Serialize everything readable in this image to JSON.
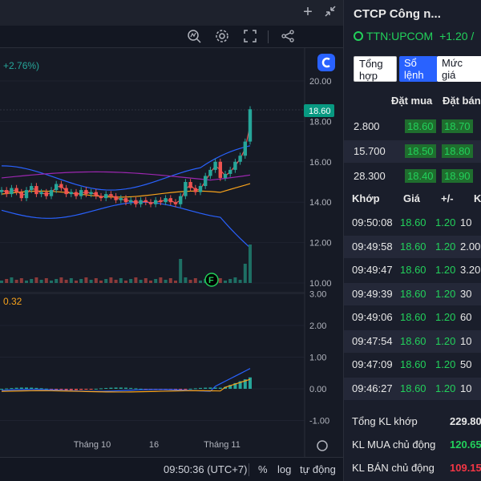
{
  "toolbar": {
    "plus_icon": "plus-icon",
    "collapse_icon": "collapse-icon",
    "indicator_icon": "indicator-icon",
    "settings_icon": "gear-icon",
    "fullscreen_icon": "fullscreen-icon",
    "share_icon": "share-icon",
    "logo_icon": "logo-icon"
  },
  "chart": {
    "change_label": "+2.76%)",
    "price_label": "18.60",
    "macd_value": "0.32",
    "price_axis": [
      "20.00",
      "18.00",
      "16.00",
      "14.00",
      "12.00",
      "10.00"
    ],
    "macd_axis": [
      "3.00",
      "2.00",
      "1.00",
      "0.00",
      "-1.00"
    ],
    "x_axis": [
      "Tháng 10",
      "16",
      "Tháng 11"
    ],
    "colors": {
      "up": "#26a69a",
      "down": "#ef5350",
      "price_tag": "#089981"
    }
  },
  "bottom_bar": {
    "time": "09:50:36 (UTC+7)",
    "percent": "%",
    "log": "log",
    "auto": "tự động"
  },
  "side_panel": {
    "title": "CTCP Công n...",
    "ticker": "TTN:UPCOM",
    "change": "+1.20 / ",
    "tabs": [
      {
        "line1": "Tổng",
        "line2": "hợp"
      },
      {
        "line1": "Sổ",
        "line2": "lệnh"
      },
      {
        "line1": "Mức",
        "line2": "giá"
      }
    ],
    "orderbook_headers": {
      "buy": "Đặt mua",
      "sell": "Đặt bán"
    },
    "orderbook": [
      {
        "vol": "2.800",
        "buy": "18.60",
        "sell": "18.70"
      },
      {
        "vol": "15.700",
        "buy": "18.50",
        "sell": "18.80"
      },
      {
        "vol": "28.300",
        "buy": "18.40",
        "sell": "18.90"
      }
    ],
    "trade_headers": {
      "match": "Khớp",
      "price": "Giá",
      "change": "+/-",
      "vol": "K"
    },
    "trades": [
      {
        "time": "09:50:08",
        "price": "18.60",
        "change": "1.20",
        "vol": "10"
      },
      {
        "time": "09:49:58",
        "price": "18.60",
        "change": "1.20",
        "vol": "2.00"
      },
      {
        "time": "09:49:47",
        "price": "18.60",
        "change": "1.20",
        "vol": "3.20"
      },
      {
        "time": "09:49:39",
        "price": "18.60",
        "change": "1.20",
        "vol": "30"
      },
      {
        "time": "09:49:06",
        "price": "18.60",
        "change": "1.20",
        "vol": "60"
      },
      {
        "time": "09:47:54",
        "price": "18.60",
        "change": "1.20",
        "vol": "10"
      },
      {
        "time": "09:47:09",
        "price": "18.60",
        "change": "1.20",
        "vol": "50"
      },
      {
        "time": "09:46:27",
        "price": "18.60",
        "change": "1.20",
        "vol": "10"
      }
    ],
    "summary": [
      {
        "label": "Tổng KL khớp",
        "value": "229.80",
        "color": "white"
      },
      {
        "label": "KL MUA chủ động",
        "value": "120.65",
        "color": "green"
      },
      {
        "label": "KL BÁN chủ động",
        "value": "109.15",
        "color": "red"
      }
    ]
  }
}
